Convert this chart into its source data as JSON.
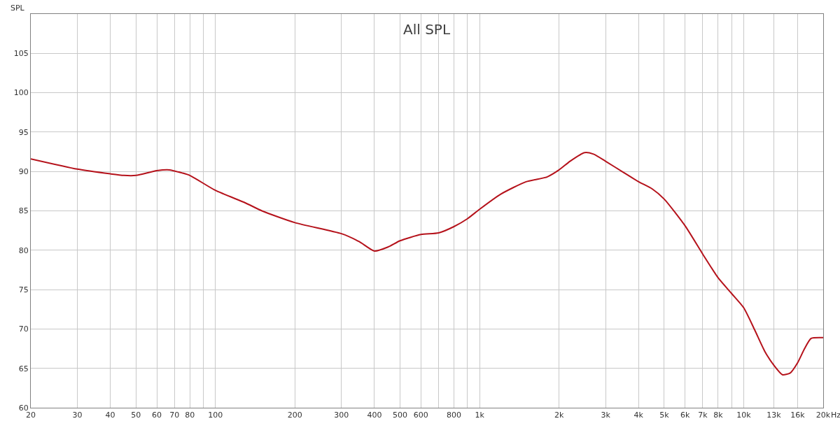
{
  "chart_data": {
    "type": "line",
    "title": "All SPL",
    "ylabel": "SPL",
    "x": [
      20,
      30,
      40,
      45,
      50,
      60,
      67,
      75,
      80,
      100,
      130,
      150,
      200,
      300,
      350,
      400,
      450,
      500,
      600,
      700,
      800,
      900,
      1000,
      1200,
      1500,
      1800,
      2000,
      2200,
      2500,
      2700,
      3000,
      3500,
      4000,
      4500,
      5000,
      6000,
      7000,
      8000,
      9000,
      10000,
      11000,
      12000,
      13000,
      14000,
      15000,
      16000,
      17000,
      18000,
      20000
    ],
    "series": [
      {
        "color": "#b5121b",
        "values": [
          91.6,
          90.3,
          89.7,
          89.5,
          89.5,
          90.1,
          90.2,
          89.8,
          89.5,
          87.6,
          86.0,
          85.0,
          83.5,
          82.1,
          81.1,
          79.9,
          80.4,
          81.2,
          82.0,
          82.2,
          83.0,
          84.0,
          85.2,
          87.1,
          88.7,
          89.3,
          90.2,
          91.3,
          92.4,
          92.2,
          91.3,
          89.9,
          88.7,
          87.8,
          86.5,
          83.1,
          79.5,
          76.5,
          74.5,
          72.7,
          69.9,
          67.2,
          65.4,
          64.2,
          64.4,
          65.7,
          67.5,
          68.8,
          68.9
        ]
      }
    ],
    "log": "x",
    "xlim": [
      20,
      20000
    ],
    "ylim": [
      60,
      110
    ],
    "xticks": [
      20,
      30,
      40,
      50,
      60,
      70,
      80,
      {
        "value": 90,
        "label": null
      },
      100,
      200,
      300,
      400,
      500,
      600,
      {
        "value": 700,
        "label": null
      },
      800,
      {
        "value": 900,
        "label": null
      },
      {
        "value": 1000,
        "label": "1k"
      },
      {
        "value": 2000,
        "label": "2k"
      },
      {
        "value": 3000,
        "label": "3k"
      },
      {
        "value": 4000,
        "label": "4k"
      },
      {
        "value": 5000,
        "label": "5k"
      },
      {
        "value": 6000,
        "label": "6k"
      },
      {
        "value": 7000,
        "label": "7k"
      },
      {
        "value": 8000,
        "label": "8k"
      },
      {
        "value": 9000,
        "label": null
      },
      {
        "value": 10000,
        "label": "10k"
      },
      {
        "value": 13000,
        "label": "13k"
      },
      {
        "value": 16000,
        "label": "16k"
      },
      {
        "value": 20000,
        "label": "20k"
      }
    ],
    "xlabel": "Hz",
    "yticks": [
      60,
      65,
      70,
      75,
      80,
      85,
      90,
      95,
      100,
      105
    ],
    "grid": true,
    "legend": false,
    "marker": "none",
    "line_style": "solid"
  }
}
